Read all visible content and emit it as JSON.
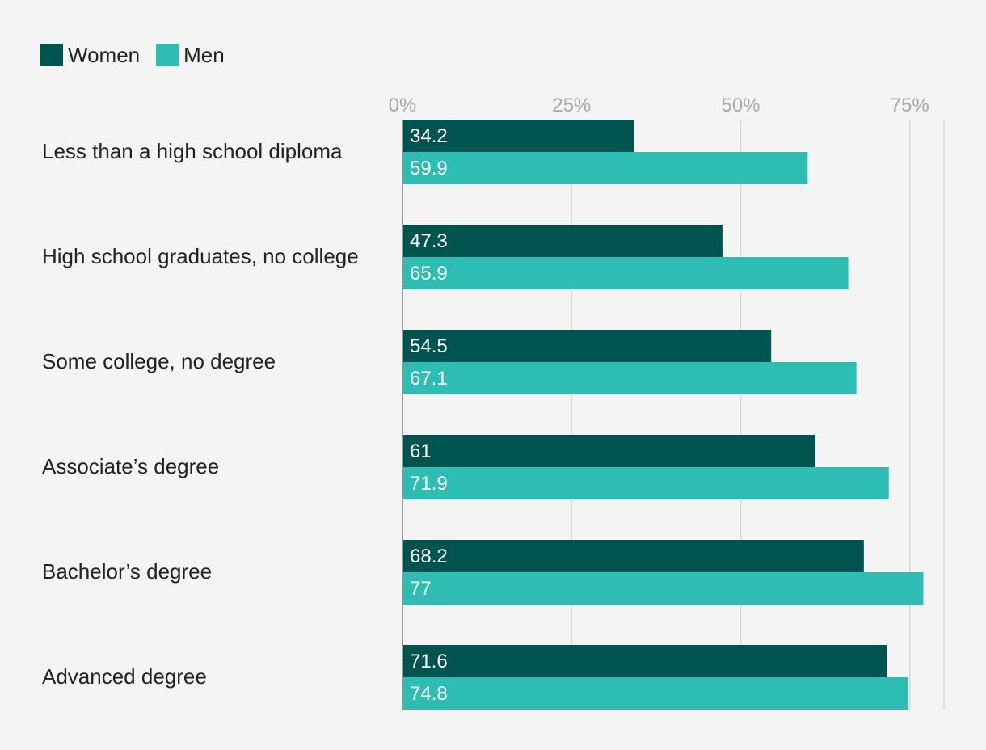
{
  "chart_data": {
    "type": "bar",
    "orientation": "horizontal",
    "categories": [
      "Less than a high school diploma",
      "High school graduates, no college",
      "Some college, no degree",
      "Associate’s degree",
      "Bachelor’s degree",
      "Advanced degree"
    ],
    "series": [
      {
        "name": "Women",
        "color": "#00544f",
        "values": [
          34.2,
          47.3,
          54.5,
          61,
          68.2,
          71.6
        ],
        "labels": [
          "34.2",
          "47.3",
          "54.5",
          "61",
          "68.2",
          "71.6"
        ]
      },
      {
        "name": "Men",
        "color": "#2ebdb2",
        "values": [
          59.9,
          65.9,
          67.1,
          71.9,
          77,
          74.8
        ],
        "labels": [
          "59.9",
          "65.9",
          "67.1",
          "71.9",
          "77",
          "74.8"
        ]
      }
    ],
    "xlim": [
      0,
      80
    ],
    "xticks": [
      0,
      25,
      50,
      75
    ],
    "xtick_labels": [
      "0%",
      "25%",
      "50%",
      "75%"
    ],
    "grid": true,
    "legend_position": "top-left",
    "title": "",
    "xlabel": "",
    "ylabel": ""
  }
}
